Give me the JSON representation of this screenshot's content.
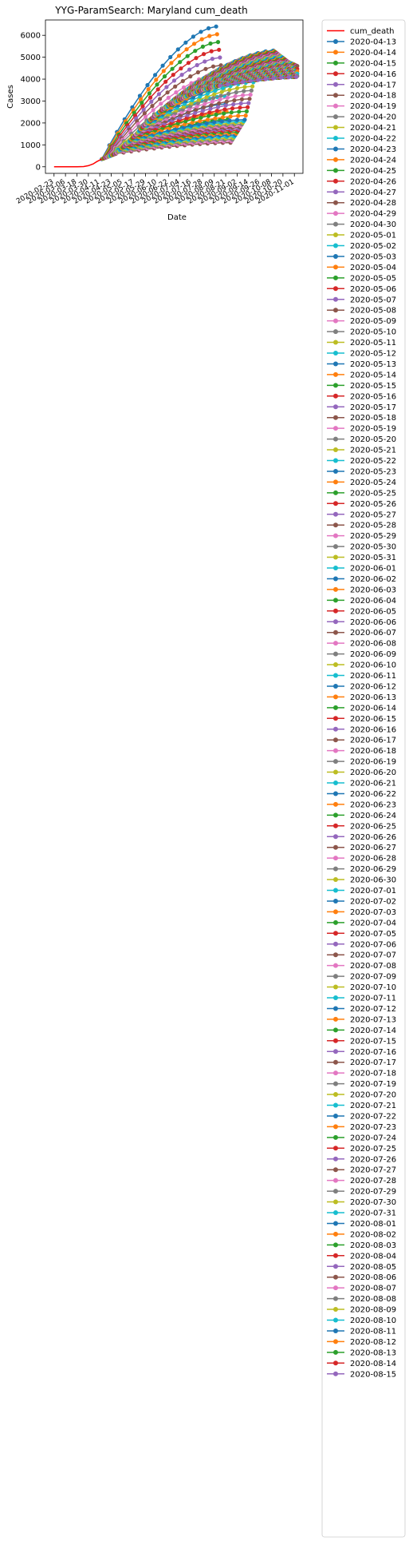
{
  "chart_data": {
    "type": "line",
    "title": "YYG-ParamSearch: Maryland cum_death",
    "xlabel": "Date",
    "ylabel": "Cases",
    "ylim": [
      -300,
      6700
    ],
    "yticks": [
      0,
      1000,
      2000,
      3000,
      4000,
      5000,
      6000
    ],
    "grid": false,
    "legend_position": "outside-right",
    "xticks": [
      "2020-02-23",
      "2020-03-06",
      "2020-03-18",
      "2020-03-30",
      "2020-04-11",
      "2020-04-23",
      "2020-05-05",
      "2020-05-17",
      "2020-05-29",
      "2020-06-10",
      "2020-06-22",
      "2020-07-04",
      "2020-07-16",
      "2020-07-28",
      "2020-08-09",
      "2020-08-21",
      "2020-09-02",
      "2020-09-14",
      "2020-09-26",
      "2020-10-08",
      "2020-10-20",
      "2020-11-01"
    ],
    "xlim": [
      "2020-02-14",
      "2020-11-10"
    ],
    "colors": [
      "#1f77b4",
      "#ff7f0e",
      "#2ca02c",
      "#d62728",
      "#9467bd",
      "#8c564b",
      "#e377c2",
      "#7f7f7f",
      "#bcbd22",
      "#17becf"
    ],
    "observed": {
      "name": "cum_death",
      "color": "#ff0000",
      "x": [
        "2020-02-23",
        "2020-03-10",
        "2020-03-18",
        "2020-03-25",
        "2020-03-30",
        "2020-04-04",
        "2020-04-08",
        "2020-04-13"
      ],
      "y": [
        0,
        0,
        0,
        10,
        50,
        130,
        240,
        350
      ]
    },
    "projections": {
      "first_date": "2020-04-13",
      "last_date": "2020-08-15",
      "x": [
        "2020-04-13",
        "2020-04-28",
        "2020-05-13",
        "2020-05-28",
        "2020-06-12",
        "2020-06-27",
        "2020-07-12",
        "2020-07-27",
        "2020-08-11"
      ],
      "y_start": [
        350,
        600,
        1200,
        1900,
        2500,
        2900,
        3250,
        3500,
        3700
      ],
      "y_end": [
        6400,
        1100,
        2150,
        5000,
        5300,
        4800,
        4500,
        4300,
        4100
      ]
    },
    "legend": {
      "entries": [
        "cum_death",
        "2020-04-13",
        "2020-04-14",
        "2020-04-15",
        "2020-04-16",
        "2020-04-17",
        "2020-04-18",
        "2020-04-19",
        "2020-04-20",
        "2020-04-21",
        "2020-04-22",
        "2020-04-23",
        "2020-04-24",
        "2020-04-25",
        "2020-04-26",
        "2020-04-27",
        "2020-04-28",
        "2020-04-29",
        "2020-04-30",
        "2020-05-01",
        "2020-05-02",
        "2020-05-03",
        "2020-05-04",
        "2020-05-05",
        "2020-05-06",
        "2020-05-07",
        "2020-05-08",
        "2020-05-09",
        "2020-05-10",
        "2020-05-11",
        "2020-05-12",
        "2020-05-13",
        "2020-05-14",
        "2020-05-15",
        "2020-05-16",
        "2020-05-17",
        "2020-05-18",
        "2020-05-19",
        "2020-05-20",
        "2020-05-21",
        "2020-05-22",
        "2020-05-23",
        "2020-05-24",
        "2020-05-25",
        "2020-05-26",
        "2020-05-27",
        "2020-05-28",
        "2020-05-29",
        "2020-05-30",
        "2020-05-31",
        "2020-06-01",
        "2020-06-02",
        "2020-06-03",
        "2020-06-04",
        "2020-06-05",
        "2020-06-06",
        "2020-06-07",
        "2020-06-08",
        "2020-06-09",
        "2020-06-10",
        "2020-06-11",
        "2020-06-12",
        "2020-06-13",
        "2020-06-14",
        "2020-06-15",
        "2020-06-16",
        "2020-06-17",
        "2020-06-18",
        "2020-06-19",
        "2020-06-20",
        "2020-06-21",
        "2020-06-22",
        "2020-06-23",
        "2020-06-24",
        "2020-06-25",
        "2020-06-26",
        "2020-06-27",
        "2020-06-28",
        "2020-06-29",
        "2020-06-30",
        "2020-07-01",
        "2020-07-02",
        "2020-07-03",
        "2020-07-04",
        "2020-07-05",
        "2020-07-06",
        "2020-07-07",
        "2020-07-08",
        "2020-07-09",
        "2020-07-10",
        "2020-07-11",
        "2020-07-12",
        "2020-07-13",
        "2020-07-14",
        "2020-07-15",
        "2020-07-16",
        "2020-07-17",
        "2020-07-18",
        "2020-07-19",
        "2020-07-20",
        "2020-07-21",
        "2020-07-22",
        "2020-07-23",
        "2020-07-24",
        "2020-07-25",
        "2020-07-26",
        "2020-07-27",
        "2020-07-28",
        "2020-07-29",
        "2020-07-30",
        "2020-07-31",
        "2020-08-01",
        "2020-08-02",
        "2020-08-03",
        "2020-08-04",
        "2020-08-05",
        "2020-08-06",
        "2020-08-07",
        "2020-08-08",
        "2020-08-09",
        "2020-08-10",
        "2020-08-11",
        "2020-08-12",
        "2020-08-13",
        "2020-08-14",
        "2020-08-15"
      ]
    }
  }
}
